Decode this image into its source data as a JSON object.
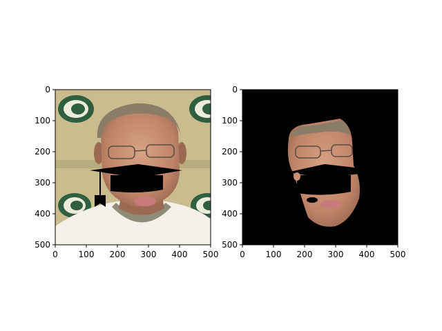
{
  "figure": {
    "background": "#ffffff",
    "axis_color": "#000000",
    "panels": [
      {
        "name": "original-with-cap",
        "content": "photo of a man in a white sweater with a black graduation-cap shape overlaid near the mouth",
        "xlim": [
          0,
          500
        ],
        "ylim": [
          500,
          0
        ],
        "x_ticks": [
          0,
          100,
          200,
          300,
          400,
          500
        ],
        "y_ticks": [
          0,
          100,
          200,
          300,
          400,
          500
        ],
        "x_tick_labels": [
          "0",
          "100",
          "200",
          "300",
          "400",
          "500"
        ],
        "y_tick_labels": [
          "0",
          "100",
          "200",
          "300",
          "400",
          "500"
        ]
      },
      {
        "name": "segmented-face",
        "content": "face region isolated on a black background with a black occlusion shape over the mouth area",
        "xlim": [
          0,
          500
        ],
        "ylim": [
          500,
          0
        ],
        "x_ticks": [
          0,
          100,
          200,
          300,
          400,
          500
        ],
        "y_ticks": [
          0,
          100,
          200,
          300,
          400,
          500
        ],
        "x_tick_labels": [
          "0",
          "100",
          "200",
          "300",
          "400",
          "500"
        ],
        "y_tick_labels": [
          "0",
          "100",
          "200",
          "300",
          "400",
          "500"
        ]
      }
    ],
    "colors": {
      "photo_background": "#c9bd8f",
      "logo_green": "#2f5f3f",
      "logo_white": "#ecebdc",
      "skin": "#c89074",
      "skin_shadow": "#9c6a52",
      "hair": "#8b7c68",
      "sweater": "#f4f1ea",
      "collar": "#8d8d78",
      "cap": "#000000",
      "mask_background": "#000000"
    }
  }
}
